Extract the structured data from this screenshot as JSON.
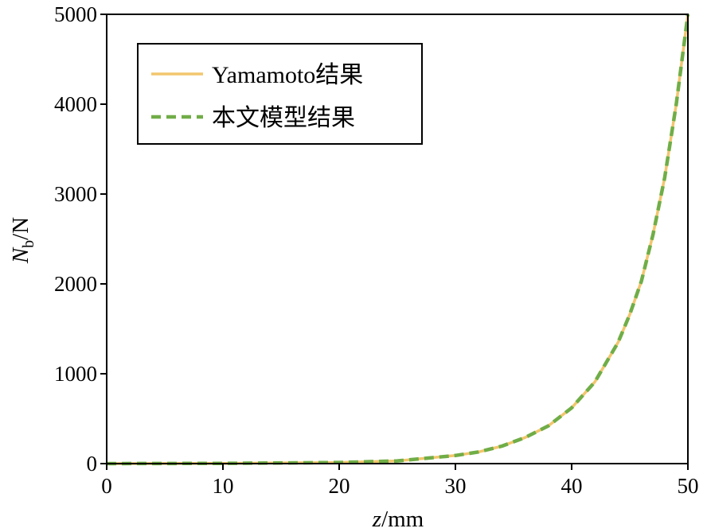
{
  "chart_data": {
    "type": "line",
    "title": "",
    "xlabel_italic": "z",
    "xlabel_rest": "/mm",
    "ylabel_italic": "N",
    "ylabel_sub": "b",
    "ylabel_rest": "/N",
    "xlim": [
      0,
      50
    ],
    "ylim": [
      0,
      5000
    ],
    "xticks": [
      0,
      10,
      20,
      30,
      40,
      50
    ],
    "yticks": [
      0,
      1000,
      2000,
      3000,
      4000,
      5000
    ],
    "grid": false,
    "legend_position": "top-left",
    "x": [
      0,
      10,
      20,
      25,
      30,
      32,
      34,
      36,
      38,
      40,
      42,
      44,
      45,
      46,
      47,
      48,
      49,
      50
    ],
    "series": [
      {
        "name": "Yamamoto结果",
        "color": "#f2c66d",
        "style": "solid",
        "values": [
          0,
          3,
          12,
          30,
          90,
          130,
          195,
          290,
          420,
          620,
          910,
          1350,
          1660,
          2030,
          2550,
          3180,
          4000,
          5000
        ]
      },
      {
        "name": "本文模型结果",
        "color": "#70ad47",
        "style": "dashed",
        "values": [
          0,
          3,
          12,
          30,
          90,
          130,
          195,
          290,
          420,
          620,
          910,
          1350,
          1660,
          2030,
          2550,
          3180,
          4000,
          5000
        ]
      }
    ]
  }
}
